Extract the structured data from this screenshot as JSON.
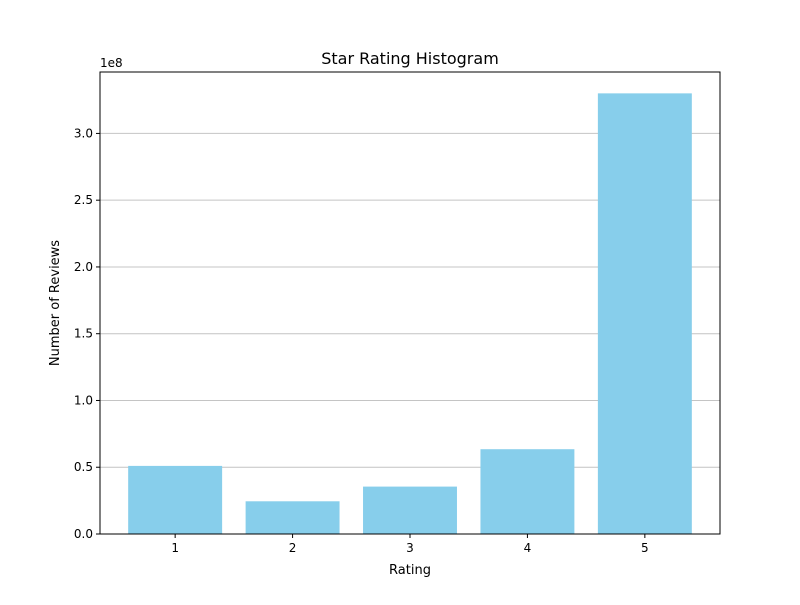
{
  "chart_data": {
    "type": "bar",
    "title": "Star Rating Histogram",
    "xlabel": "Rating",
    "ylabel": "Number of Reviews",
    "y_offset_label": "1e8",
    "categories": [
      "1",
      "2",
      "3",
      "4",
      "5"
    ],
    "values": [
      51000000,
      24500000,
      35500000,
      63500000,
      330000000
    ],
    "ylim": [
      0,
      346000000
    ],
    "yticks": [
      0,
      50000000,
      100000000,
      150000000,
      200000000,
      250000000,
      300000000
    ],
    "ytick_labels": [
      "0.0",
      "0.5",
      "1.0",
      "1.5",
      "2.0",
      "2.5",
      "3.0"
    ],
    "grid": "horizontal",
    "legend": "none",
    "colors": {
      "bar": "#87ceeb",
      "grid": "#c4c4c4",
      "axis": "#000000"
    }
  }
}
